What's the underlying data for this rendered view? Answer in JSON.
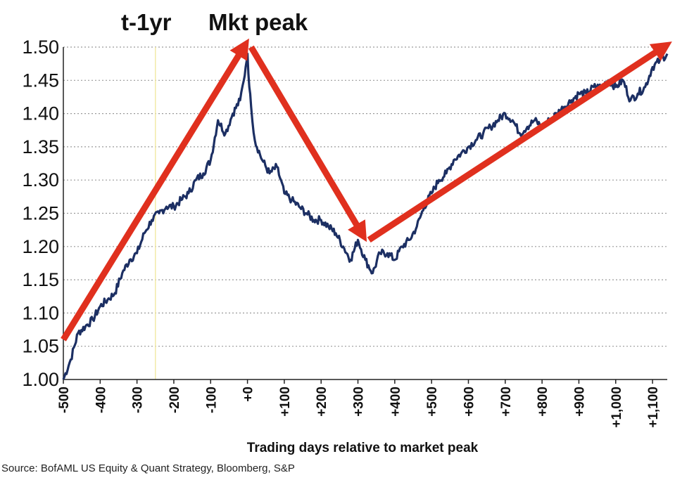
{
  "chart_data": {
    "type": "line",
    "title": "",
    "xlabel": "Trading days relative to market peak",
    "ylabel": "",
    "xlim": [
      -500,
      1140
    ],
    "ylim": [
      1.0,
      1.5
    ],
    "yticks": [
      1.0,
      1.05,
      1.1,
      1.15,
      1.2,
      1.25,
      1.3,
      1.35,
      1.4,
      1.45,
      1.5
    ],
    "ytick_labels": [
      "1.00",
      "1.05",
      "1.10",
      "1.15",
      "1.20",
      "1.25",
      "1.30",
      "1.35",
      "1.40",
      "1.45",
      "1.50"
    ],
    "xticks": [
      -500,
      -400,
      -300,
      -200,
      -100,
      0,
      100,
      200,
      300,
      400,
      500,
      600,
      700,
      800,
      900,
      1000,
      1100
    ],
    "xtick_labels": [
      "-500",
      "-400",
      "-300",
      "-200",
      "-100",
      "+0",
      "+100",
      "+200",
      "+300",
      "+400",
      "+500",
      "+600",
      "+700",
      "+800",
      "+900",
      "+1,000",
      "+1,100"
    ],
    "grid": "horizontal-dotted",
    "reference_line_x": -250,
    "series": [
      {
        "color": "#1c2f63",
        "x": [
          -500,
          -480,
          -460,
          -440,
          -420,
          -400,
          -380,
          -360,
          -340,
          -320,
          -300,
          -280,
          -260,
          -240,
          -220,
          -200,
          -180,
          -160,
          -140,
          -120,
          -100,
          -80,
          -60,
          -40,
          -20,
          -10,
          -5,
          0,
          5,
          10,
          20,
          40,
          60,
          80,
          100,
          120,
          140,
          160,
          180,
          200,
          220,
          240,
          260,
          280,
          300,
          320,
          340,
          360,
          380,
          400,
          420,
          440,
          460,
          480,
          500,
          520,
          540,
          560,
          580,
          600,
          620,
          640,
          660,
          680,
          700,
          720,
          740,
          760,
          780,
          800,
          820,
          840,
          860,
          880,
          900,
          920,
          940,
          960,
          980,
          1000,
          1020,
          1040,
          1060,
          1080,
          1100,
          1120,
          1140
        ],
        "values": [
          1.0,
          1.03,
          1.07,
          1.08,
          1.09,
          1.11,
          1.12,
          1.13,
          1.16,
          1.18,
          1.19,
          1.22,
          1.24,
          1.25,
          1.26,
          1.26,
          1.27,
          1.28,
          1.3,
          1.31,
          1.33,
          1.39,
          1.37,
          1.4,
          1.42,
          1.45,
          1.47,
          1.49,
          1.44,
          1.41,
          1.36,
          1.33,
          1.31,
          1.32,
          1.28,
          1.27,
          1.26,
          1.25,
          1.24,
          1.24,
          1.23,
          1.22,
          1.2,
          1.18,
          1.21,
          1.18,
          1.16,
          1.19,
          1.19,
          1.18,
          1.2,
          1.21,
          1.23,
          1.26,
          1.28,
          1.3,
          1.31,
          1.33,
          1.34,
          1.35,
          1.36,
          1.37,
          1.38,
          1.39,
          1.4,
          1.39,
          1.37,
          1.38,
          1.39,
          1.38,
          1.39,
          1.4,
          1.41,
          1.42,
          1.43,
          1.43,
          1.44,
          1.44,
          1.45,
          1.44,
          1.45,
          1.42,
          1.43,
          1.44,
          1.47,
          1.48,
          1.49
        ]
      }
    ],
    "annotations": [
      {
        "text": "t-1yr"
      },
      {
        "text": "Mkt peak"
      }
    ],
    "arrow_color": "#e0301e",
    "arrows": [
      {
        "from": [
          -500,
          1.06
        ],
        "to": [
          -10,
          1.5
        ]
      },
      {
        "from": [
          10,
          1.5
        ],
        "to": [
          310,
          1.22
        ]
      },
      {
        "from": [
          330,
          1.21
        ],
        "to": [
          1130,
          1.5
        ]
      }
    ]
  },
  "source": "Source: BofAML US Equity & Quant Strategy, Bloomberg, S&P"
}
